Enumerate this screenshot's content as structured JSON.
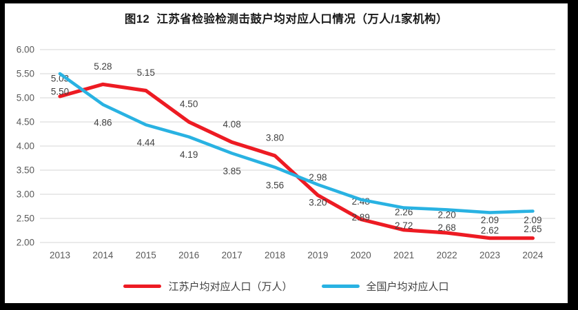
{
  "chart_data": {
    "type": "line",
    "title": "图12  江苏省检验检测击鼓户均对应人口情况（万人/1家机构）",
    "categories": [
      "2013",
      "2014",
      "2015",
      "2016",
      "2017",
      "2018",
      "2019",
      "2020",
      "2021",
      "2022",
      "2023",
      "2024"
    ],
    "series": [
      {
        "name": "江苏户均对应人口（万人）",
        "color": "#ed1b23",
        "values": [
          5.03,
          5.28,
          5.15,
          4.5,
          4.08,
          3.8,
          2.98,
          2.48,
          2.26,
          2.2,
          2.09,
          2.09
        ]
      },
      {
        "name": "全国户均对应人口",
        "color": "#29b2e2",
        "values": [
          5.5,
          4.86,
          4.44,
          4.19,
          3.85,
          3.56,
          3.2,
          2.89,
          2.72,
          2.68,
          2.62,
          2.65
        ]
      }
    ],
    "ylim": [
      2.0,
      6.0
    ],
    "yticks": [
      "6.00",
      "5.50",
      "5.00",
      "4.50",
      "4.00",
      "3.50",
      "3.00",
      "2.50",
      "2.00"
    ],
    "xlabel": "",
    "ylabel": "",
    "grid": "horizontal",
    "legend_position": "bottom",
    "data_labels": true
  },
  "colors": {
    "background": "#ffffff",
    "frame_border": "#000000",
    "grid": "#e3e3e3",
    "axis_text": "#595959",
    "data_label_text": "#404040",
    "title_text": "#1a1a1a"
  }
}
